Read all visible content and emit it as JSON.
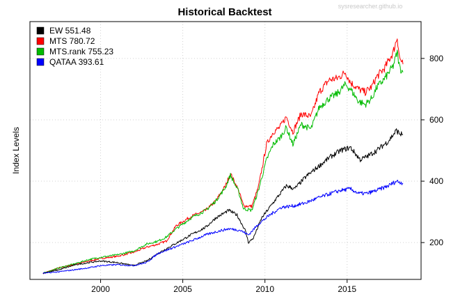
{
  "chart_data": {
    "type": "line",
    "title": "Historical Backtest",
    "watermark": "sysresearcher.github.io",
    "xlabel": "",
    "ylabel": "Index Levels",
    "xlim": [
      1995.7,
      2019.5
    ],
    "ylim": [
      80,
      920
    ],
    "x_ticks": [
      2000,
      2005,
      2010,
      2015
    ],
    "y_ticks": [
      200,
      400,
      600,
      800
    ],
    "y_axis_side": "right",
    "grid": true,
    "legend_position": "top-left",
    "legend": [
      {
        "label": "EW 551.48",
        "color": "#000000"
      },
      {
        "label": "MTS 780.72",
        "color": "#ff0000"
      },
      {
        "label": "MTS.rank 755.23",
        "color": "#00bb00"
      },
      {
        "label": "QATAA 393.61",
        "color": "#0000ff"
      }
    ],
    "series": [
      {
        "name": "MTS",
        "color": "#ff0000",
        "x": [
          1996.5,
          1997.5,
          1998.5,
          1999.3,
          2000.0,
          2001.0,
          2002.0,
          2002.8,
          2003.5,
          2004.0,
          2004.6,
          2005.5,
          2006.4,
          2007.0,
          2007.6,
          2007.9,
          2008.4,
          2008.7,
          2009.2,
          2009.6,
          2010.1,
          2010.5,
          2010.9,
          2011.3,
          2011.7,
          2012.2,
          2012.8,
          2013.3,
          2013.9,
          2014.4,
          2014.9,
          2015.2,
          2015.7,
          2016.1,
          2016.5,
          2016.8,
          2017.3,
          2017.8,
          2018.05,
          2018.2,
          2018.4
        ],
        "values": [
          100,
          118,
          130,
          140,
          148,
          155,
          168,
          185,
          195,
          205,
          255,
          285,
          305,
          335,
          385,
          425,
          370,
          320,
          318,
          380,
          520,
          560,
          575,
          610,
          560,
          620,
          610,
          690,
          730,
          735,
          755,
          722,
          700,
          690,
          708,
          740,
          770,
          820,
          870,
          800,
          781
        ]
      },
      {
        "name": "MTS.rank",
        "color": "#00bb00",
        "x": [
          1996.5,
          1997.5,
          1998.5,
          1999.3,
          2000.0,
          2001.0,
          2002.0,
          2002.8,
          2003.5,
          2004.0,
          2004.6,
          2005.5,
          2006.4,
          2007.0,
          2007.6,
          2007.9,
          2008.4,
          2008.7,
          2009.2,
          2009.6,
          2010.1,
          2010.5,
          2010.9,
          2011.3,
          2011.7,
          2012.2,
          2012.8,
          2013.3,
          2013.9,
          2014.4,
          2014.9,
          2015.2,
          2015.7,
          2016.1,
          2016.5,
          2016.8,
          2017.3,
          2017.8,
          2018.05,
          2018.2,
          2018.4
        ],
        "values": [
          100,
          118,
          132,
          145,
          152,
          160,
          172,
          195,
          205,
          218,
          245,
          280,
          305,
          335,
          380,
          420,
          365,
          310,
          305,
          370,
          470,
          520,
          540,
          575,
          520,
          585,
          570,
          640,
          670,
          685,
          715,
          700,
          660,
          650,
          670,
          705,
          735,
          775,
          820,
          770,
          755
        ]
      },
      {
        "name": "EW",
        "color": "#000000",
        "x": [
          1996.5,
          1997.5,
          1998.5,
          1999.3,
          2000.0,
          2001.0,
          2002.0,
          2002.8,
          2003.5,
          2004.5,
          2005.5,
          2006.4,
          2007.0,
          2007.8,
          2008.3,
          2008.8,
          2009.0,
          2009.3,
          2009.8,
          2010.5,
          2011.3,
          2011.8,
          2012.5,
          2013.3,
          2014.0,
          2014.6,
          2015.2,
          2015.8,
          2016.2,
          2016.8,
          2017.5,
          2018.0,
          2018.2,
          2018.4
        ],
        "values": [
          100,
          112,
          128,
          135,
          140,
          135,
          125,
          140,
          165,
          195,
          225,
          250,
          280,
          305,
          290,
          240,
          200,
          215,
          280,
          330,
          385,
          375,
          415,
          450,
          480,
          500,
          510,
          470,
          480,
          500,
          530,
          565,
          555,
          551
        ]
      },
      {
        "name": "QATAA",
        "color": "#0000ff",
        "x": [
          1996.5,
          1997.5,
          1998.5,
          1999.3,
          2000.0,
          2001.0,
          2002.0,
          2002.8,
          2003.5,
          2004.5,
          2005.5,
          2006.4,
          2007.0,
          2007.8,
          2008.5,
          2009.0,
          2009.6,
          2010.3,
          2011.0,
          2011.8,
          2012.5,
          2013.2,
          2014.0,
          2014.6,
          2015.2,
          2015.7,
          2016.2,
          2016.8,
          2017.5,
          2018.0,
          2018.4
        ],
        "values": [
          100,
          105,
          112,
          118,
          125,
          128,
          125,
          135,
          165,
          185,
          205,
          225,
          235,
          245,
          240,
          225,
          260,
          290,
          315,
          320,
          330,
          345,
          360,
          370,
          375,
          360,
          360,
          370,
          385,
          400,
          394
        ]
      }
    ]
  }
}
